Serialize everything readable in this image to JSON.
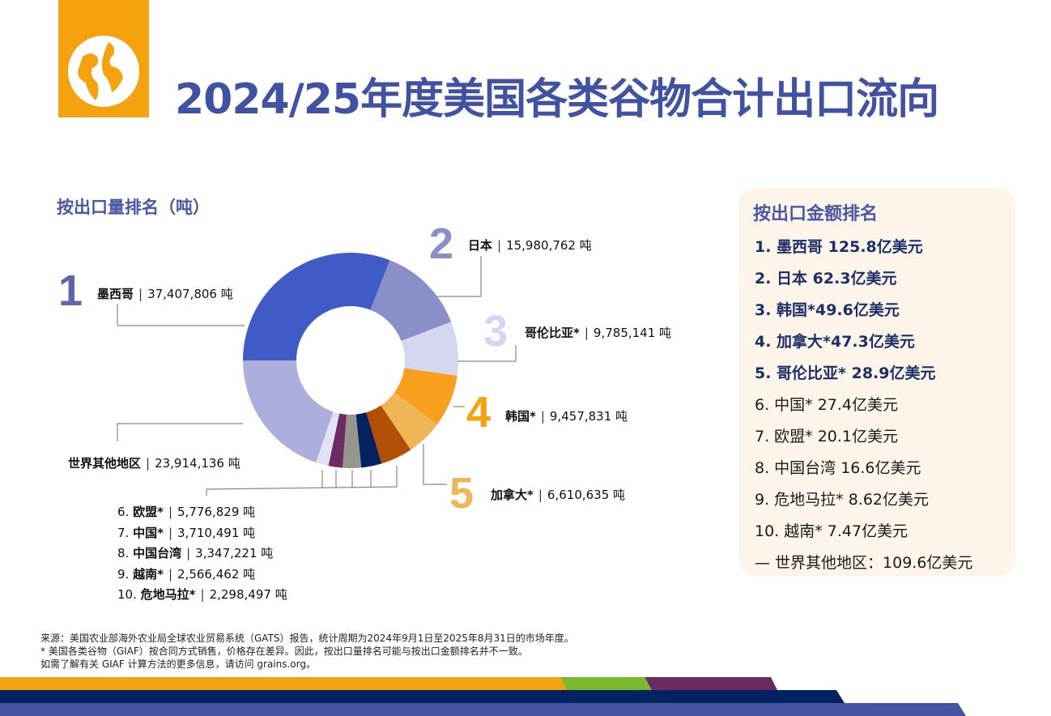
{
  "header": {
    "title": "2024/25年度美国各类谷物合计出口流向",
    "logo_icon": "globe-icon"
  },
  "left_heading": "按出口量排名（吨）",
  "unit": "吨",
  "chart_data": {
    "type": "pie",
    "subtype": "donut",
    "title": "按出口量排名（吨）",
    "categories": [
      "墨西哥",
      "日本",
      "哥伦比亚*",
      "韩国*",
      "加拿大*",
      "欧盟*",
      "中国*",
      "中国台湾",
      "越南*",
      "危地马拉*",
      "世界其他地区"
    ],
    "values": [
      37407806,
      15980762,
      9785141,
      9457831,
      6610635,
      5776829,
      3710491,
      3347221,
      2566462,
      2298497,
      23914136
    ],
    "value_labels": [
      "37,407,806",
      "15,980,762",
      "9,785,141",
      "9,457,831",
      "6,610,635",
      "5,776,829",
      "3,710,491",
      "3,347,221",
      "2,566,462",
      "2,298,497",
      "23,914,136"
    ],
    "ranks": [
      "1",
      "2",
      "3",
      "4",
      "5",
      "6.",
      "7.",
      "8.",
      "9.",
      "10.",
      ""
    ],
    "colors": [
      "#415bc6",
      "#8b8fc8",
      "#d5d6ef",
      "#f99f1e",
      "#efb658",
      "#b34e07",
      "#02235f",
      "#97968d",
      "#6b2d63",
      "#e2e1f5",
      "#adaedc"
    ],
    "rank_colors": [
      "#6066ad",
      "#8b8fc8",
      "#d5d6ef",
      "#f4a30f",
      "#efb658"
    ]
  },
  "panel": {
    "title": "按出口金额排名",
    "items": [
      "1. 墨西哥 125.8亿美元",
      "2. 日本 62.3亿美元",
      "3. 韩国*49.6亿美元",
      "4. 加拿大*47.3亿美元",
      "5. 哥伦比亚* 28.9亿美元",
      "6. 中国* 27.4亿美元",
      "7. 欧盟* 20.1亿美元",
      "8. 中国台湾 16.6亿美元",
      "9. 危地马拉* 8.62亿美元",
      "10. 越南* 7.47亿美元",
      "— 世界其他地区：109.6亿美元"
    ]
  },
  "footer": [
    "来源：美国农业部海外农业局全球农业贸易系统（GATS）报告，统计周期为2024年9月1日至2025年8月31日的市场年度。",
    "* 美国各类谷物（GIAF）按合同方式销售，价格存在差异。因此，按出口量排名可能与按出口金额排名并不一致。",
    "如需了解有关 GIAF 计算方法的更多信息，请访问 grains.org。"
  ],
  "stripe_colors": [
    "#f4a30f",
    "#7cb82f",
    "#6b2a62",
    "#02235f",
    "#4654a3"
  ]
}
